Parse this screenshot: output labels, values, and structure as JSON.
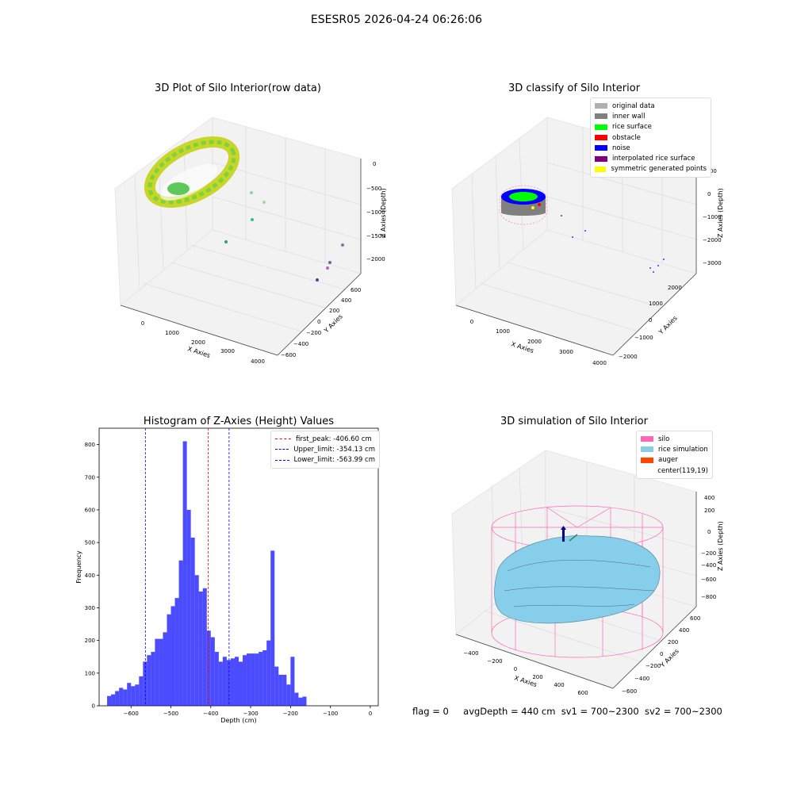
{
  "suptitle": "ESESR05 2026-04-24 06:26:06",
  "footer": {
    "flag": "flag = 0",
    "avgDepth": "avgDepth = 440 cm",
    "sv1": "sv1 = 700~2300",
    "sv2": "sv2 = 700~2300"
  },
  "panels": {
    "raw": {
      "title": "3D Plot of Silo Interior(row data)",
      "xlabel": "X Axies",
      "ylabel": "Y Axies",
      "zlabel": "Z Axies (Depth)",
      "xticks": [
        "0",
        "1000",
        "2000",
        "3000",
        "4000"
      ],
      "yticks": [
        "600",
        "400",
        "200",
        "0",
        "−200",
        "−400",
        "−600"
      ],
      "zticks": [
        "0",
        "−500",
        "−1000",
        "−1500",
        "−2000"
      ]
    },
    "classify": {
      "title": "3D classify of Silo Interior",
      "xlabel": "X Axies",
      "ylabel": "Y Axies",
      "zlabel": "Z Axies (Depth)",
      "xticks": [
        "0",
        "1000",
        "2000",
        "3000",
        "4000"
      ],
      "yticks": [
        "2000",
        "1000",
        "0",
        "−1000",
        "−2000"
      ],
      "zticks": [
        "1000",
        "0",
        "−1000",
        "−2000",
        "−3000"
      ],
      "legend": [
        {
          "label": "original data",
          "color": "#b0b0b0"
        },
        {
          "label": "inner wall",
          "color": "#808080"
        },
        {
          "label": "rice surface",
          "color": "#00ff00"
        },
        {
          "label": "obstacle",
          "color": "#ff0000"
        },
        {
          "label": "noise",
          "color": "#0000ff"
        },
        {
          "label": "interpolated rice surface",
          "color": "#800080"
        },
        {
          "label": "symmetric generated points",
          "color": "#ffff00"
        }
      ]
    },
    "simulation": {
      "title": "3D simulation of Silo Interior",
      "xlabel": "X Axies",
      "ylabel": "Y Axies",
      "zlabel": "Z Axies (Depth)",
      "xticks": [
        "−400",
        "−200",
        "0",
        "200",
        "400",
        "600"
      ],
      "yticks": [
        "600",
        "400",
        "200",
        "0",
        "−200",
        "−400",
        "−600"
      ],
      "zticks": [
        "400",
        "200",
        "0",
        "−200",
        "−400",
        "−600",
        "−800"
      ],
      "legend": [
        {
          "label": "silo",
          "color": "#ff69b4"
        },
        {
          "label": "rice simulation",
          "color": "#87ceeb"
        },
        {
          "label": "auger",
          "color": "#ff4500"
        },
        {
          "label": "center(119,19)",
          "color": ""
        }
      ]
    }
  },
  "chart_data": {
    "type": "bar",
    "title": "Histogram of Z-Axies (Height) Values",
    "xlabel": "Depth (cm)",
    "ylabel": "Frequency",
    "xlim": [
      -680,
      20
    ],
    "ylim": [
      0,
      850
    ],
    "xticks": [
      -600,
      -500,
      -400,
      -300,
      -200,
      -100,
      0
    ],
    "yticks": [
      0,
      100,
      200,
      300,
      400,
      500,
      600,
      700,
      800
    ],
    "bin_start": -660,
    "bin_width": 10,
    "values": [
      30,
      35,
      45,
      55,
      50,
      70,
      60,
      65,
      90,
      135,
      155,
      165,
      205,
      205,
      225,
      280,
      305,
      330,
      445,
      810,
      600,
      515,
      400,
      350,
      360,
      230,
      210,
      165,
      135,
      150,
      140,
      145,
      150,
      135,
      155,
      160,
      160,
      160,
      165,
      170,
      200,
      475,
      120,
      95,
      95,
      65,
      150,
      40,
      25,
      28
    ],
    "lines": [
      {
        "label": "first_peak: -406.60 cm",
        "value": -406.6,
        "color": "#ff0000"
      },
      {
        "label": "Upper_limit: -354.13 cm",
        "value": -354.13,
        "color": "#0000ff"
      },
      {
        "label": "Lower_limit: -563.99 cm",
        "value": -563.99,
        "color": "#0000ff"
      }
    ],
    "bar_color": "#0000ff",
    "bar_alpha": 0.7
  }
}
